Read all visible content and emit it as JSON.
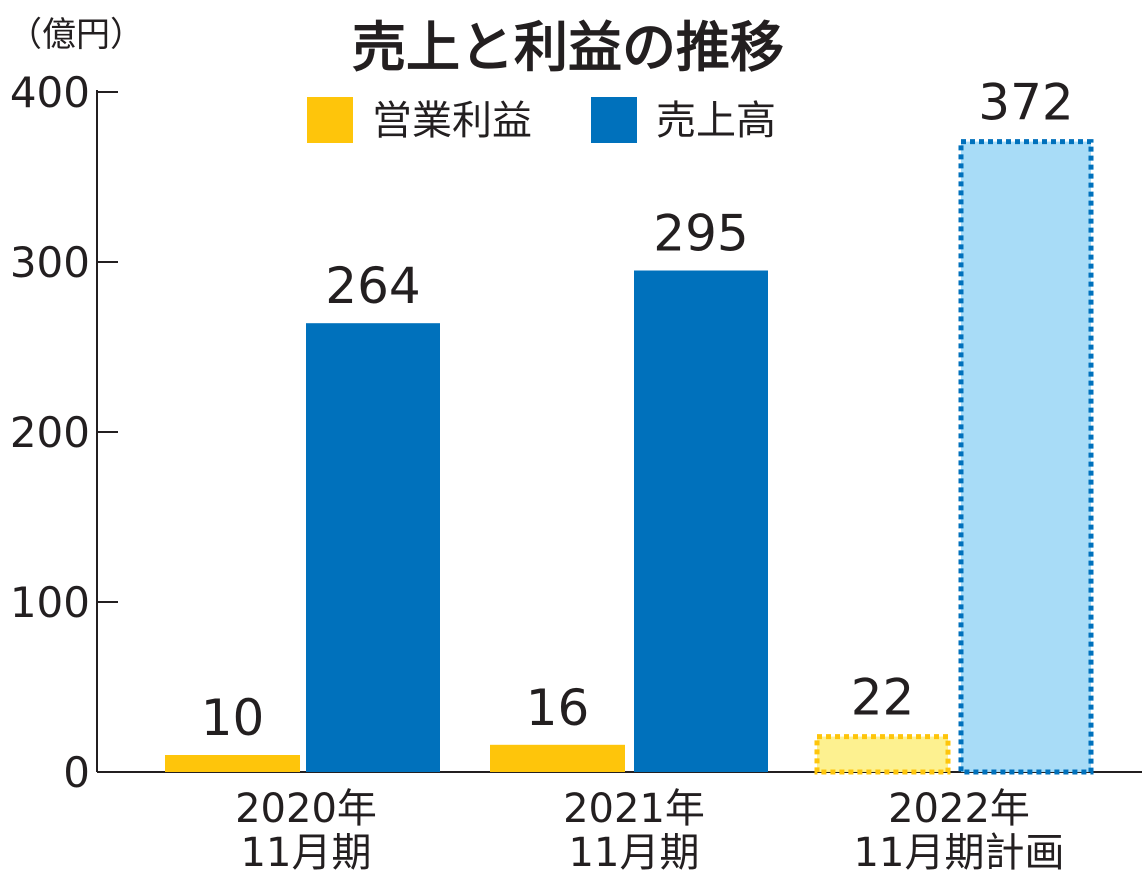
{
  "chart_data": {
    "type": "bar",
    "title": "売上と利益の推移",
    "unit_label": "（億円）",
    "categories": [
      [
        "2020年",
        "11月期"
      ],
      [
        "2021年",
        "11月期"
      ],
      [
        "2022年",
        "11月期計画"
      ]
    ],
    "series": [
      {
        "name": "営業利益",
        "values": [
          10,
          16,
          22
        ],
        "color": "#fec50b",
        "planned_color": "#fdf190"
      },
      {
        "name": "売上高",
        "values": [
          264,
          295,
          372
        ],
        "color": "#0071bc",
        "planned_color": "#a8dcf7"
      }
    ],
    "planned_category_index": 2,
    "data_labels": [
      [
        "10",
        "16",
        "22"
      ],
      [
        "264",
        "295",
        "372"
      ]
    ],
    "y_ticks": [
      0,
      100,
      200,
      300,
      400
    ],
    "ylim": [
      0,
      400
    ],
    "grid": false,
    "legend_position": "top-center"
  }
}
